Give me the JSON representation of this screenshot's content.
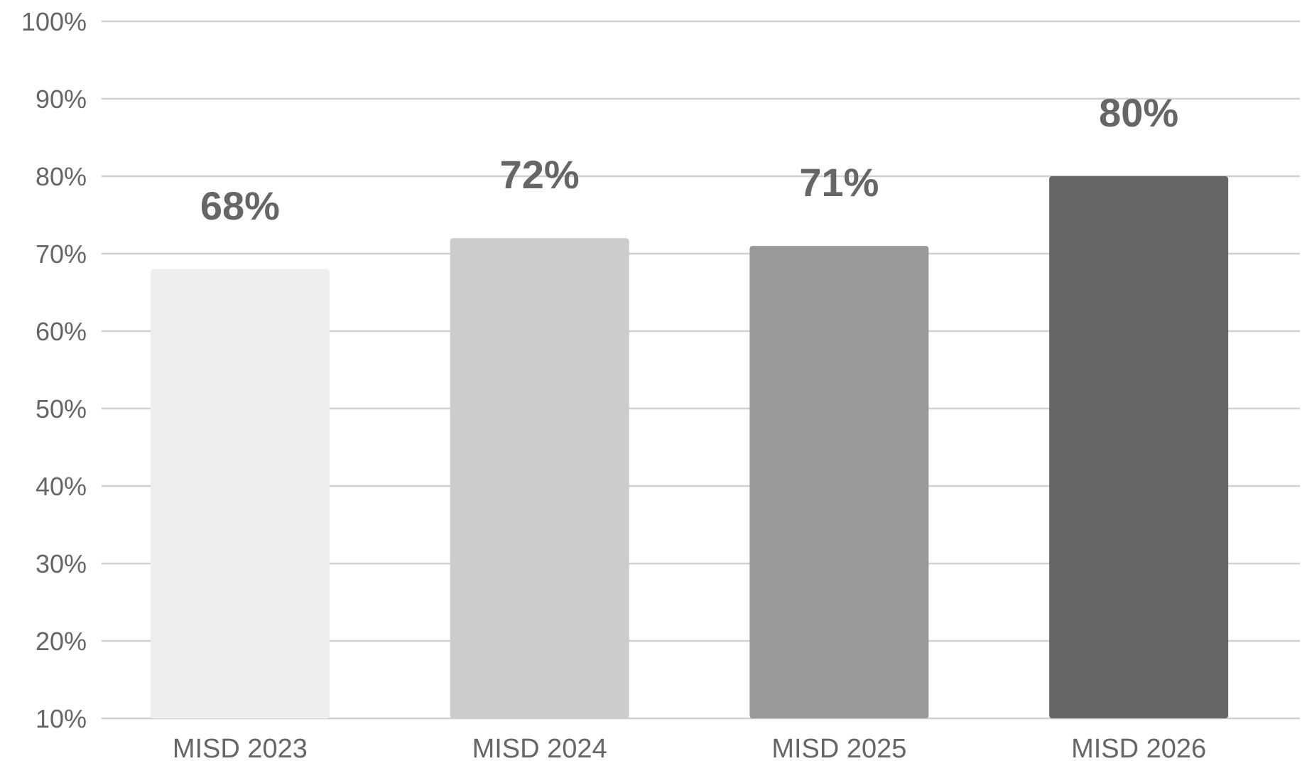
{
  "chart_data": {
    "type": "bar",
    "title": "",
    "xlabel": "",
    "ylabel": "",
    "categories": [
      "MISD 2023",
      "MISD 2024",
      "MISD 2025",
      "MISD 2026"
    ],
    "values": [
      68,
      72,
      71,
      80
    ],
    "value_labels": [
      "68%",
      "72%",
      "71%",
      "80%"
    ],
    "bar_colors": [
      "#eeeeee",
      "#cccccc",
      "#999999",
      "#666666"
    ],
    "ylim": [
      10,
      100
    ],
    "y_ticks": [
      10,
      20,
      30,
      40,
      50,
      60,
      70,
      80,
      90,
      100
    ],
    "y_tick_labels": [
      "10%",
      "20%",
      "30%",
      "40%",
      "50%",
      "60%",
      "70%",
      "80%",
      "90%",
      "100%"
    ],
    "grid": true,
    "legend": "none"
  }
}
